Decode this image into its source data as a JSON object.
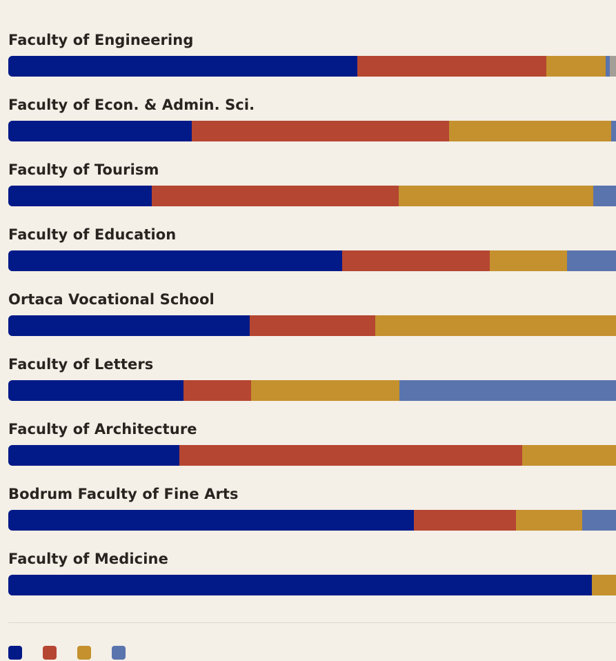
{
  "chart_data": {
    "type": "bar",
    "orientation": "horizontal",
    "stacked": true,
    "normalized": true,
    "grid": false,
    "legend_position": "bottom-left",
    "categories": [
      "Faculty of Engineering",
      "Faculty of Econ. & Admin. Sci.",
      "Faculty of Tourism",
      "Faculty of Education",
      "Ortaca Vocational School",
      "Faculty of Letters",
      "Faculty of Architecture",
      "Bodrum Faculty of Fine Arts",
      "Faculty of Medicine"
    ],
    "series": [
      {
        "name": "",
        "color": "#021a88",
        "values": [
          57.4,
          30.2,
          23.6,
          54.9,
          39.7,
          28.8,
          28.1,
          66.7,
          96.0
        ]
      },
      {
        "name": "",
        "color": "#b54632",
        "values": [
          31.1,
          42.3,
          40.6,
          24.3,
          20.7,
          11.1,
          56.5,
          16.8,
          0.0
        ]
      },
      {
        "name": "",
        "color": "#c4912e",
        "values": [
          9.8,
          26.7,
          32.0,
          12.7,
          39.6,
          24.5,
          15.4,
          10.9,
          4.0
        ]
      },
      {
        "name": "",
        "color": "#5a74ad",
        "values": [
          0.7,
          0.8,
          3.8,
          8.1,
          0.0,
          35.6,
          0.0,
          5.6,
          0.0
        ]
      },
      {
        "name": "",
        "color": "#a39e96",
        "values": [
          1.0,
          0.0,
          0.0,
          0.0,
          0.0,
          0.0,
          0.0,
          0.0,
          0.0
        ]
      }
    ],
    "legend": [
      {
        "label": "",
        "color": "#021a88"
      },
      {
        "label": "",
        "color": "#b54632"
      },
      {
        "label": "",
        "color": "#c4912e"
      },
      {
        "label": "",
        "color": "#5a74ad"
      }
    ]
  }
}
